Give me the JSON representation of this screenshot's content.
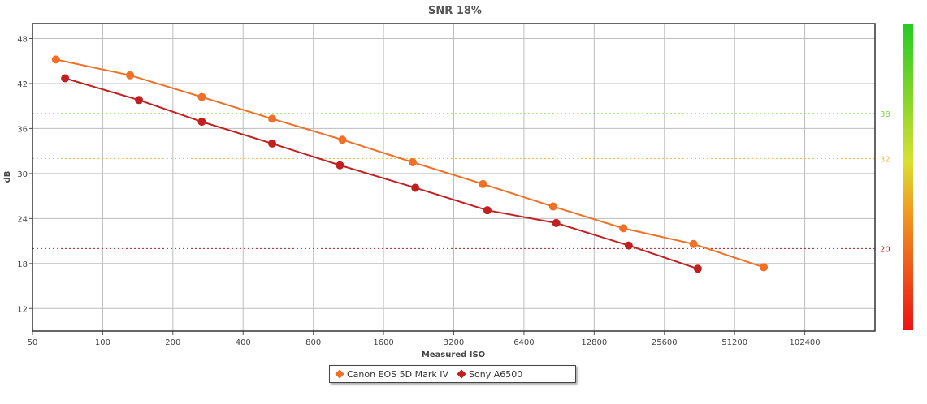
{
  "chart_data": {
    "type": "line",
    "title": "SNR 18%",
    "xlabel": "Measured ISO",
    "ylabel": "dB",
    "x_scale": "log2",
    "xlim": [
      50,
      204800
    ],
    "ylim": [
      9,
      50
    ],
    "x_ticks": [
      50,
      100,
      200,
      400,
      800,
      1600,
      3200,
      6400,
      12800,
      25600,
      51200,
      102400
    ],
    "x_tick_labels": [
      "50",
      "100",
      "200",
      "400",
      "800",
      "1600",
      "3200",
      "6400",
      "12800",
      "25600",
      "51200",
      "102400"
    ],
    "y_ticks": [
      12,
      18,
      24,
      30,
      36,
      42,
      48
    ],
    "y_tick_labels": [
      "12",
      "18",
      "24",
      "30",
      "36",
      "42",
      "48"
    ],
    "grid": true,
    "legend_position": "bottom-center",
    "reference_lines": [
      {
        "value": 38,
        "label": "38",
        "color": "#7cd64a"
      },
      {
        "value": 32,
        "label": "32",
        "color": "#f0b840"
      },
      {
        "value": 20,
        "label": "20",
        "color": "#b02020"
      }
    ],
    "color_scale": {
      "top_color": "#22cc22",
      "bottom_color": "#ee1111"
    },
    "series": [
      {
        "name": "Canon EOS 5D Mark IV",
        "color": "#f07028",
        "x": [
          63,
          131,
          266,
          533,
          1066,
          2133,
          4267,
          8533,
          17067,
          34133,
          68267
        ],
        "values": [
          45.2,
          43.1,
          40.2,
          37.3,
          34.5,
          31.5,
          28.6,
          25.6,
          22.7,
          20.6,
          17.5
        ]
      },
      {
        "name": "Sony A6500",
        "color": "#c02020",
        "x": [
          69,
          143,
          266,
          533,
          1040,
          2190,
          4460,
          8800,
          18000,
          35600
        ],
        "values": [
          42.7,
          39.8,
          36.9,
          34.0,
          31.1,
          28.1,
          25.1,
          23.4,
          20.4,
          17.3
        ]
      }
    ]
  }
}
